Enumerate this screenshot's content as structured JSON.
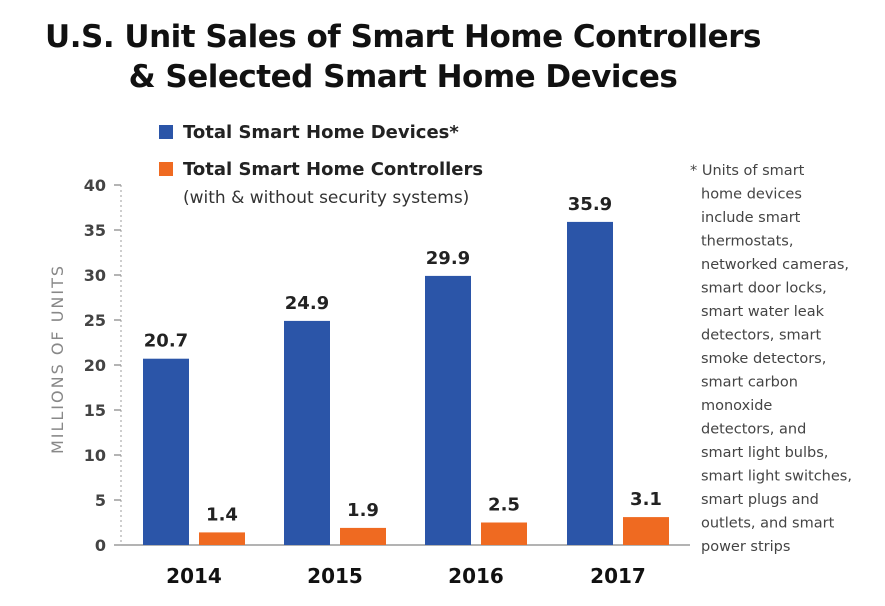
{
  "chart_data": {
    "type": "bar",
    "title_lines": [
      "U.S. Unit Sales of Smart Home Controllers",
      "& Selected Smart Home Devices"
    ],
    "ylabel": "MILLIONS OF UNITS",
    "xlabel": "",
    "ylim": [
      0,
      40
    ],
    "yticks": [
      0,
      5,
      10,
      15,
      20,
      25,
      30,
      35,
      40
    ],
    "categories": [
      "2014",
      "2015",
      "2016",
      "2017"
    ],
    "series": [
      {
        "name": "Total Smart Home Devices*",
        "sublabel": "",
        "color": "#2b55a8",
        "values": [
          20.7,
          24.9,
          29.9,
          35.9
        ],
        "labels": [
          "20.7",
          "24.9",
          "29.9",
          "35.9"
        ]
      },
      {
        "name": "Total Smart Home Controllers",
        "sublabel": "(with & without security systems)",
        "color": "#ef6a21",
        "values": [
          1.4,
          1.9,
          2.5,
          3.1
        ],
        "labels": [
          "1.4",
          "1.9",
          "2.5",
          "3.1"
        ]
      }
    ],
    "legend_position": "top-left",
    "grid": false,
    "footnote_lines": [
      "* Units of smart",
      "home devices",
      "include smart",
      "thermostats,",
      "networked cameras,",
      "smart door locks,",
      "smart water leak",
      "detectors, smart",
      "smoke detectors,",
      "smart carbon",
      "monoxide",
      "detectors, and",
      "smart light bulbs,",
      "smart light switches,",
      "smart plugs and",
      "outlets, and smart",
      "power strips"
    ]
  }
}
